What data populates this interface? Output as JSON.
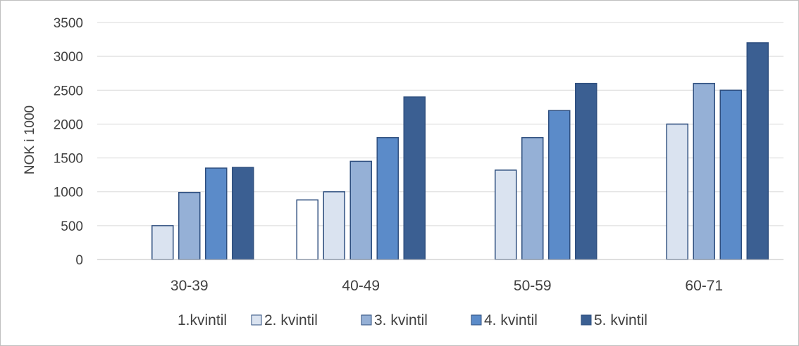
{
  "chart_data": {
    "type": "bar",
    "title": "",
    "xlabel": "",
    "ylabel": "NOK i 1000",
    "ylim": [
      0,
      3500
    ],
    "yticks": [
      0,
      500,
      1000,
      1500,
      2000,
      2500,
      3000,
      3500
    ],
    "categories": [
      "30-39",
      "40-49",
      "50-59",
      "60-71"
    ],
    "series": [
      {
        "name": "1.kvintil",
        "color": "#ffffff",
        "values": [
          null,
          880,
          null,
          null
        ]
      },
      {
        "name": "2. kvintil",
        "color": "#dae3f0",
        "values": [
          500,
          1000,
          1320,
          2000
        ]
      },
      {
        "name": "3. kvintil",
        "color": "#95b0d6",
        "values": [
          990,
          1450,
          1800,
          2600
        ]
      },
      {
        "name": "4. kvintil",
        "color": "#5b8bc9",
        "values": [
          1350,
          1800,
          2200,
          2500
        ]
      },
      {
        "name": "5. kvintil",
        "color": "#3b5f92",
        "values": [
          1360,
          2400,
          2600,
          3200
        ]
      }
    ],
    "bar_edge_color": "#2f4f7f",
    "grid": true,
    "grid_color": "#d9d9d9",
    "legend_position": "bottom"
  }
}
